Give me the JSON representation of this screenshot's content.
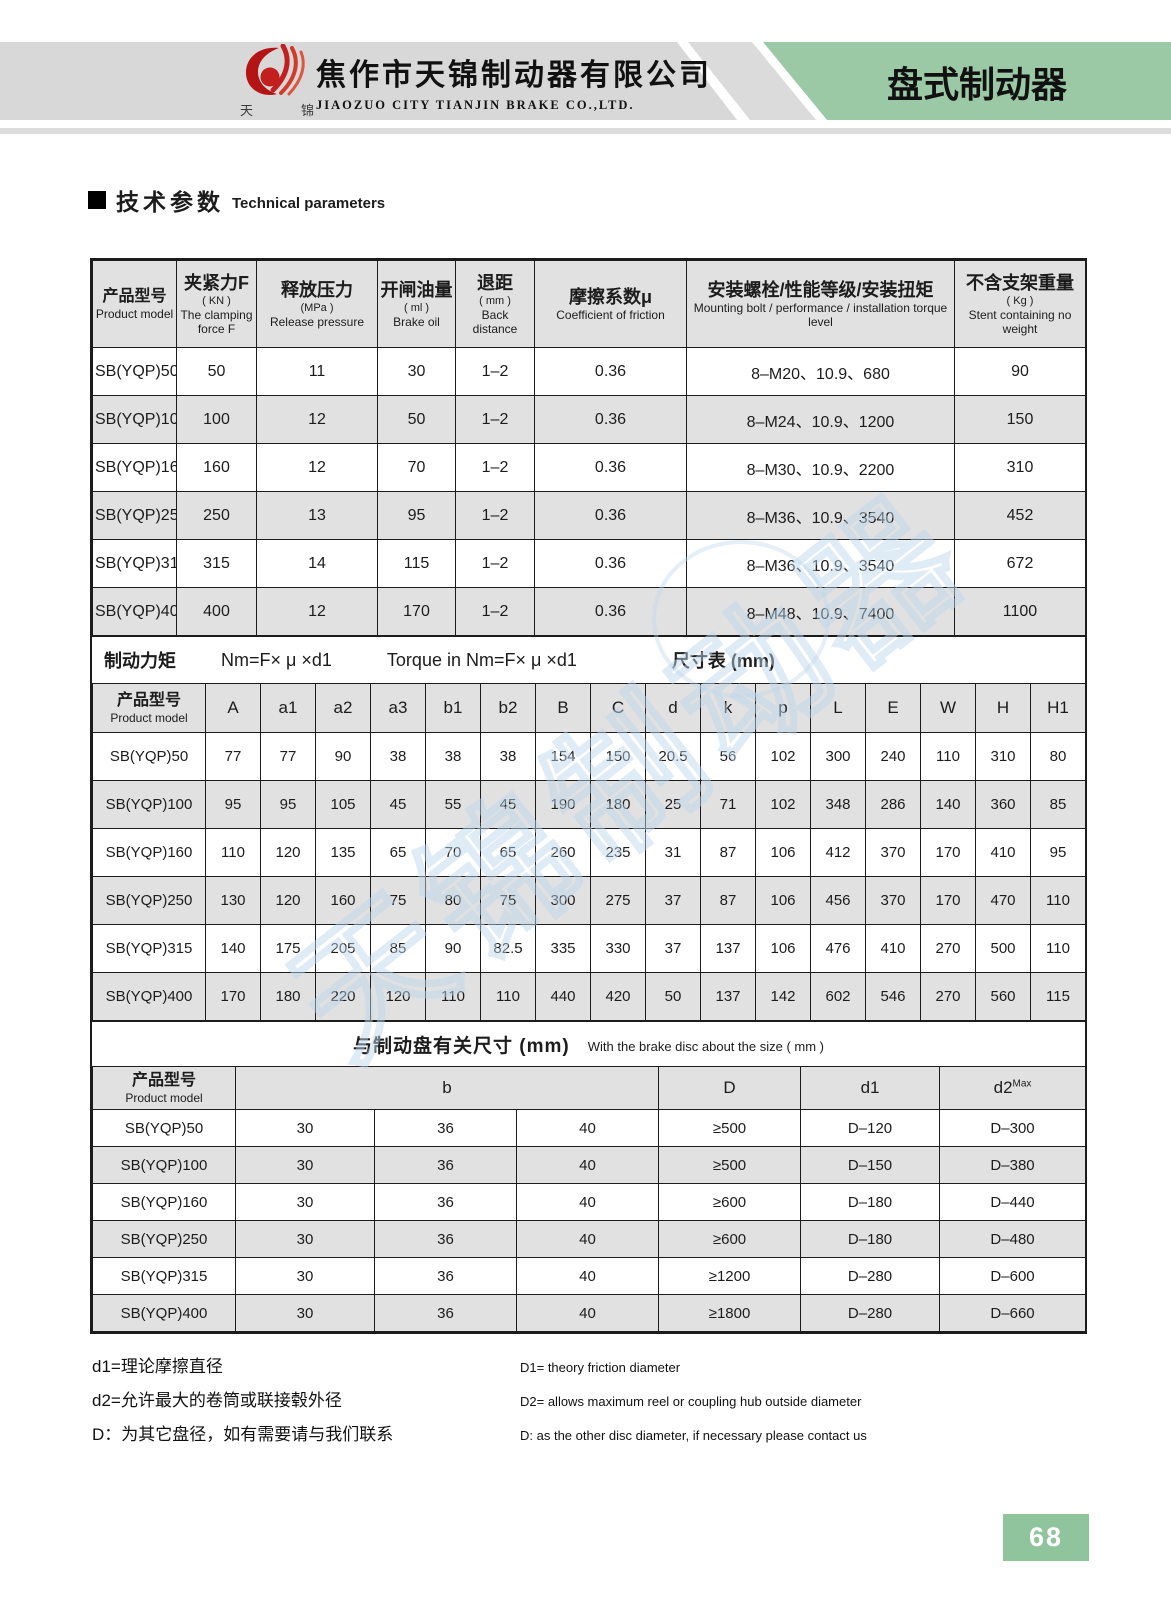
{
  "header": {
    "logo_chars": [
      "天",
      "锦"
    ],
    "company_cn": "焦作市天锦制动器有限公司",
    "company_en": "JIAOZUO CITY TIANJIN BRAKE CO.,LTD.",
    "banner": "盘式制动器"
  },
  "colors": {
    "banner_green": "#9cc9a5",
    "page_number_green": "#8fc49c",
    "band_gray": "#d8d8d8",
    "row_gray": "#e1e1e1",
    "watermark_blue": "#bdd7ec",
    "logo_red": "#c21f1f"
  },
  "section_title": {
    "cn": "技术参数",
    "en": "Technical parameters"
  },
  "table1": {
    "headers": [
      {
        "cn": "产品型号",
        "en": "Product model"
      },
      {
        "cn": "夹紧力F",
        "sub": "( KN )",
        "en": "The clamping force F"
      },
      {
        "cn": "释放压力",
        "sub": "(MPa )",
        "en": "Release pressure"
      },
      {
        "cn": "开闸油量",
        "sub": "( ml )",
        "en": "Brake oil"
      },
      {
        "cn": "退距",
        "sub": "( mm )",
        "en": "Back distance"
      },
      {
        "cn": "摩擦系数μ",
        "en": "Coefficient of friction"
      },
      {
        "cn": "安装螺栓/性能等级/安装扭矩",
        "en": "Mounting bolt / performance / installation torque level"
      },
      {
        "cn": "不含支架重量",
        "sub": "( Kg )",
        "en": "Stent containing no weight"
      }
    ],
    "rows": [
      [
        "SB(YQP)50",
        "50",
        "11",
        "30",
        "1–2",
        "0.36",
        "8–M20、10.9、680",
        "90"
      ],
      [
        "SB(YQP)100",
        "100",
        "12",
        "50",
        "1–2",
        "0.36",
        "8–M24、10.9、1200",
        "150"
      ],
      [
        "SB(YQP)160",
        "160",
        "12",
        "70",
        "1–2",
        "0.36",
        "8–M30、10.9、2200",
        "310"
      ],
      [
        "SB(YQP)250",
        "250",
        "13",
        "95",
        "1–2",
        "0.36",
        "8–M36、10.9、3540",
        "452"
      ],
      [
        "SB(YQP)315",
        "315",
        "14",
        "115",
        "1–2",
        "0.36",
        "8–M36、10.9、3540",
        "672"
      ],
      [
        "SB(YQP)400",
        "400",
        "12",
        "170",
        "1–2",
        "0.36",
        "8–M48、10.9、7400",
        "1100"
      ]
    ]
  },
  "formula_row": {
    "label": "制动力矩",
    "formula": "Nm=F× μ ×d1",
    "formula_en": "Torque in Nm=F× μ ×d1",
    "dim_label": "尺寸表 (mm)"
  },
  "table2": {
    "first_header": {
      "cn": "产品型号",
      "en": "Product model"
    },
    "dim_headers": [
      "A",
      "a1",
      "a2",
      "a3",
      "b1",
      "b2",
      "B",
      "C",
      "d",
      "k",
      "p",
      "L",
      "E",
      "W",
      "H",
      "H1"
    ],
    "rows": [
      [
        "SB(YQP)50",
        "77",
        "77",
        "90",
        "38",
        "38",
        "38",
        "154",
        "150",
        "20.5",
        "56",
        "102",
        "300",
        "240",
        "110",
        "310",
        "80"
      ],
      [
        "SB(YQP)100",
        "95",
        "95",
        "105",
        "45",
        "55",
        "45",
        "190",
        "180",
        "25",
        "71",
        "102",
        "348",
        "286",
        "140",
        "360",
        "85"
      ],
      [
        "SB(YQP)160",
        "110",
        "120",
        "135",
        "65",
        "70",
        "65",
        "260",
        "235",
        "31",
        "87",
        "106",
        "412",
        "370",
        "170",
        "410",
        "95"
      ],
      [
        "SB(YQP)250",
        "130",
        "120",
        "160",
        "75",
        "80",
        "75",
        "300",
        "275",
        "37",
        "87",
        "106",
        "456",
        "370",
        "170",
        "470",
        "110"
      ],
      [
        "SB(YQP)315",
        "140",
        "175",
        "205",
        "85",
        "90",
        "82.5",
        "335",
        "330",
        "37",
        "137",
        "106",
        "476",
        "410",
        "270",
        "500",
        "110"
      ],
      [
        "SB(YQP)400",
        "170",
        "180",
        "220",
        "120",
        "110",
        "110",
        "440",
        "420",
        "50",
        "137",
        "142",
        "602",
        "546",
        "270",
        "560",
        "115"
      ]
    ]
  },
  "table3": {
    "title_cn": "与制动盘有关尺寸 (mm)",
    "title_en": "With the brake disc about the size ( mm )",
    "first_header": {
      "cn": "产品型号",
      "en": "Product model"
    },
    "b_header": "b",
    "d_header": "D",
    "d1_header": "d1",
    "d2_header": {
      "base": "d2",
      "sup": "Max"
    },
    "rows": [
      [
        "SB(YQP)50",
        "30",
        "36",
        "40",
        "≥500",
        "D–120",
        "D–300"
      ],
      [
        "SB(YQP)100",
        "30",
        "36",
        "40",
        "≥500",
        "D–150",
        "D–380"
      ],
      [
        "SB(YQP)160",
        "30",
        "36",
        "40",
        "≥600",
        "D–180",
        "D–440"
      ],
      [
        "SB(YQP)250",
        "30",
        "36",
        "40",
        "≥600",
        "D–180",
        "D–480"
      ],
      [
        "SB(YQP)315",
        "30",
        "36",
        "40",
        "≥1200",
        "D–280",
        "D–600"
      ],
      [
        "SB(YQP)400",
        "30",
        "36",
        "40",
        "≥1800",
        "D–280",
        "D–660"
      ]
    ]
  },
  "notes": [
    {
      "cn": "d1=理论摩擦直径",
      "en": "D1= theory friction diameter"
    },
    {
      "cn": "d2=允许最大的卷筒或联接毂外径",
      "en": "D2= allows maximum reel or coupling hub outside diameter"
    },
    {
      "cn": "D：为其它盘径，如有需要请与我们联系",
      "en": "D: as the other disc diameter, if necessary please contact us"
    }
  ],
  "watermark": "天锦制动器",
  "page_number": "68"
}
